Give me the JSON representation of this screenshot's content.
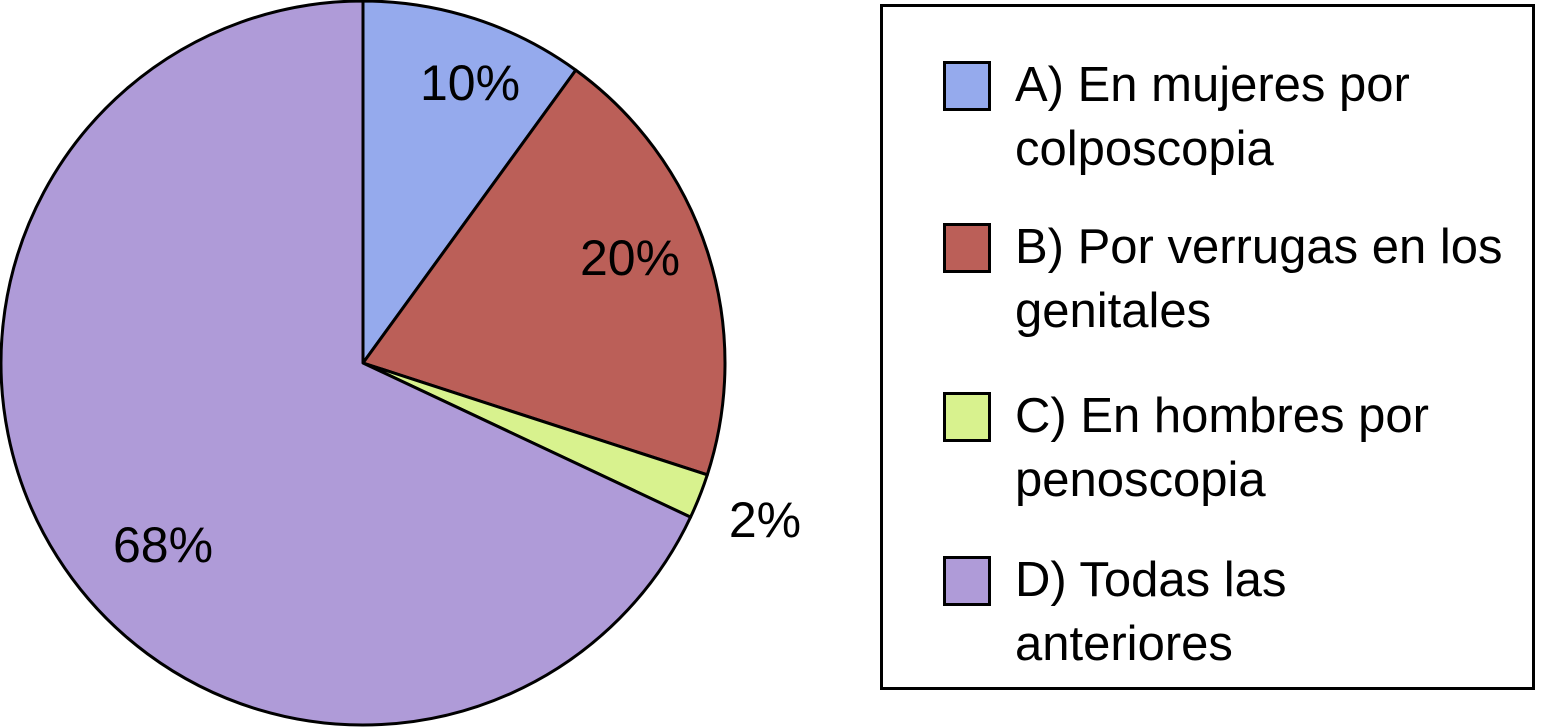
{
  "chart_data": {
    "type": "pie",
    "title": "",
    "slices": [
      {
        "label": "A) En mujeres por colposcopia",
        "value": 10,
        "value_label": "10%",
        "color": "#95aaed"
      },
      {
        "label": "B) Por verrugas en los genitales",
        "value": 20,
        "value_label": "20%",
        "color": "#bb5f58"
      },
      {
        "label": "C) En hombres por penoscopia",
        "value": 2,
        "value_label": "2%",
        "color": "#d8f28e"
      },
      {
        "label": "D) Todas las anteriores",
        "value": 68,
        "value_label": "68%",
        "color": "#af9bd8"
      }
    ],
    "start_angle": "top",
    "direction": "clockwise",
    "legend": {
      "placement": "right",
      "border": true
    }
  }
}
